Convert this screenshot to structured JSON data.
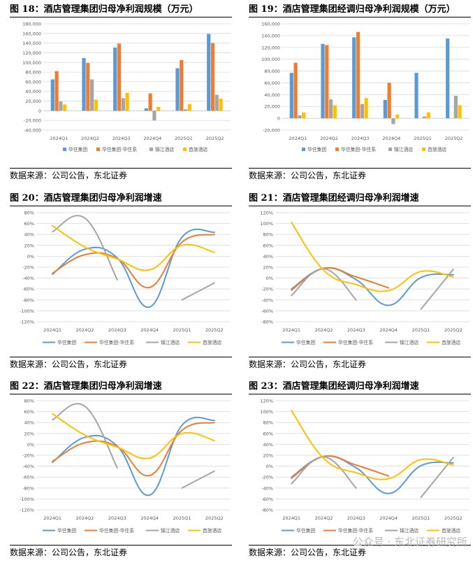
{
  "source_text": "数据来源：公司公告，东北证券",
  "watermark": "公众号 · 东北证券研究所",
  "colors": {
    "s1": "#5B9BD5",
    "s2": "#ED7D31",
    "s3": "#A5A5A5",
    "s4": "#FFC000",
    "grid": "#D9D9D9",
    "axis": "#595959"
  },
  "chart_data": [
    {
      "figure": "图 18：",
      "title": "酒店管理集团归母净利润规模（万元）",
      "type": "bar",
      "categories": [
        "2024Q1",
        "2024Q2",
        "2024Q3",
        "2024Q4",
        "2025Q1",
        "2025Q2"
      ],
      "ylim": [
        -40000,
        180000
      ],
      "yticks": [
        -40000,
        -20000,
        0,
        20000,
        40000,
        60000,
        80000,
        100000,
        120000,
        140000,
        160000,
        180000
      ],
      "ytick_labels": [
        "-40,000",
        "-20,000",
        "0",
        "20,000",
        "40,000",
        "60,000",
        "80,000",
        "100,000",
        "120,000",
        "140,000",
        "160,000",
        "180,000"
      ],
      "series": [
        {
          "name": "华住集团",
          "values": [
            65000,
            109000,
            131000,
            5000,
            88000,
            159000
          ]
        },
        {
          "name": "华住集团-华住系",
          "values": [
            82000,
            99000,
            139000,
            36000,
            105000,
            140000
          ]
        },
        {
          "name": "锦江酒店",
          "values": [
            19000,
            65000,
            26000,
            -20000,
            3000,
            33000
          ]
        },
        {
          "name": "首旅酒店",
          "values": [
            13000,
            23000,
            37000,
            8000,
            14000,
            25000
          ]
        }
      ]
    },
    {
      "figure": "图 19：",
      "title": "酒店管理集团经调归母净利润规模（万元）",
      "type": "bar",
      "categories": [
        "2024Q1",
        "2024Q2",
        "2024Q3",
        "2024Q4",
        "2025Q1",
        "2025Q2"
      ],
      "ylim": [
        -20000,
        160000
      ],
      "yticks": [
        -20000,
        0,
        20000,
        40000,
        60000,
        80000,
        100000,
        120000,
        140000,
        160000
      ],
      "ytick_labels": [
        "-20,000",
        "0",
        "20,000",
        "40,000",
        "60,000",
        "80,000",
        "100,000",
        "120,000",
        "140,000",
        "160,000"
      ],
      "series": [
        {
          "name": "华住集团",
          "values": [
            77000,
            126000,
            137000,
            31000,
            77000,
            135000
          ]
        },
        {
          "name": "华住集团-华住系",
          "values": [
            94000,
            124000,
            146000,
            60000,
            null,
            null
          ]
        },
        {
          "name": "锦江酒店",
          "values": [
            5000,
            32000,
            24000,
            -10000,
            3000,
            38000
          ]
        },
        {
          "name": "首旅酒店",
          "values": [
            10000,
            22000,
            34000,
            6000,
            10000,
            22000
          ]
        }
      ]
    },
    {
      "figure": "图 20：",
      "title": "酒店管理集团归母净利润增速",
      "type": "line",
      "categories": [
        "2024Q1",
        "2024Q2",
        "2024Q3",
        "2024Q4",
        "2025Q1",
        "2025Q2"
      ],
      "ylim": [
        -120,
        80
      ],
      "yticks": [
        -120,
        -100,
        -80,
        -60,
        -40,
        -20,
        0,
        20,
        40,
        60,
        80
      ],
      "ytick_labels": [
        "-120%",
        "-100%",
        "-80%",
        "-60%",
        "-40%",
        "-20%",
        "0%",
        "20%",
        "40%",
        "60%",
        "80%"
      ],
      "series": [
        {
          "name": "华住集团",
          "values": [
            -33,
            13,
            -3,
            -93,
            35,
            44
          ]
        },
        {
          "name": "华住集团-华住系",
          "values": [
            -31,
            3,
            -4,
            -57,
            26,
            40
          ]
        },
        {
          "name": "锦江酒店",
          "values": [
            45,
            70,
            -43,
            null,
            -80,
            -49
          ]
        },
        {
          "name": "首旅酒店",
          "values": [
            56,
            17,
            -5,
            -25,
            20,
            7
          ]
        }
      ]
    },
    {
      "figure": "图 21：",
      "title": "酒店管理集团经调归母净利润增速",
      "type": "line",
      "categories": [
        "2024Q1",
        "2024Q2",
        "2024Q3",
        "2024Q4",
        "2025Q1",
        "2025Q2"
      ],
      "ylim": [
        -80,
        120
      ],
      "yticks": [
        -80,
        -60,
        -40,
        -20,
        0,
        20,
        40,
        60,
        80,
        100,
        120
      ],
      "ytick_labels": [
        "-80%",
        "-60%",
        "-40%",
        "-20%",
        "0%",
        "20%",
        "40%",
        "60%",
        "80%",
        "100%",
        "120%"
      ],
      "series": [
        {
          "name": "华住集团",
          "values": [
            -20,
            18,
            -3,
            -50,
            1,
            6
          ]
        },
        {
          "name": "华住集团-华住系",
          "values": [
            -22,
            18,
            2,
            -18,
            null,
            null
          ]
        },
        {
          "name": "锦江酒店",
          "values": [
            -32,
            17,
            -40,
            null,
            -57,
            16
          ]
        },
        {
          "name": "首旅酒店",
          "values": [
            102,
            14,
            -12,
            -23,
            12,
            2
          ]
        }
      ]
    },
    {
      "figure": "图 22：",
      "title": "酒店管理集团归母净利润增速",
      "type": "line",
      "categories": [
        "2024Q1",
        "2024Q2",
        "2024Q3",
        "2024Q4",
        "2025Q1",
        "2025Q2"
      ],
      "ylim": [
        -120,
        80
      ],
      "yticks": [
        -120,
        -100,
        -80,
        -60,
        -40,
        -20,
        0,
        20,
        40,
        60,
        80
      ],
      "ytick_labels": [
        "-120%",
        "-100%",
        "-80%",
        "-60%",
        "-40%",
        "-20%",
        "0%",
        "20%",
        "40%",
        "60%",
        "80%"
      ],
      "series": [
        {
          "name": "华住集团",
          "values": [
            -33,
            13,
            -3,
            -93,
            35,
            44
          ]
        },
        {
          "name": "华住集团-华住系",
          "values": [
            -31,
            3,
            -4,
            -57,
            26,
            40
          ]
        },
        {
          "name": "锦江酒店",
          "values": [
            45,
            70,
            -43,
            null,
            -80,
            -49
          ]
        },
        {
          "name": "首旅酒店",
          "values": [
            56,
            17,
            -5,
            -25,
            20,
            7
          ]
        }
      ]
    },
    {
      "figure": "图 23：",
      "title": "酒店管理集团经调归母净利润增速",
      "type": "line",
      "categories": [
        "2024Q1",
        "2024Q2",
        "2024Q3",
        "2024Q4",
        "2025Q1",
        "2025Q2"
      ],
      "ylim": [
        -80,
        120
      ],
      "yticks": [
        -80,
        -60,
        -40,
        -20,
        0,
        20,
        40,
        60,
        80,
        100,
        120
      ],
      "ytick_labels": [
        "-80%",
        "-60%",
        "-40%",
        "-20%",
        "0%",
        "20%",
        "40%",
        "60%",
        "80%",
        "100%",
        "120%"
      ],
      "series": [
        {
          "name": "华住集团",
          "values": [
            -20,
            18,
            -3,
            -50,
            1,
            6
          ]
        },
        {
          "name": "华住集团-华住系",
          "values": [
            -22,
            18,
            2,
            -18,
            null,
            null
          ]
        },
        {
          "name": "锦江酒店",
          "values": [
            -32,
            17,
            -40,
            null,
            -57,
            16
          ]
        },
        {
          "name": "首旅酒店",
          "values": [
            102,
            14,
            -12,
            -23,
            12,
            2
          ]
        }
      ]
    }
  ]
}
